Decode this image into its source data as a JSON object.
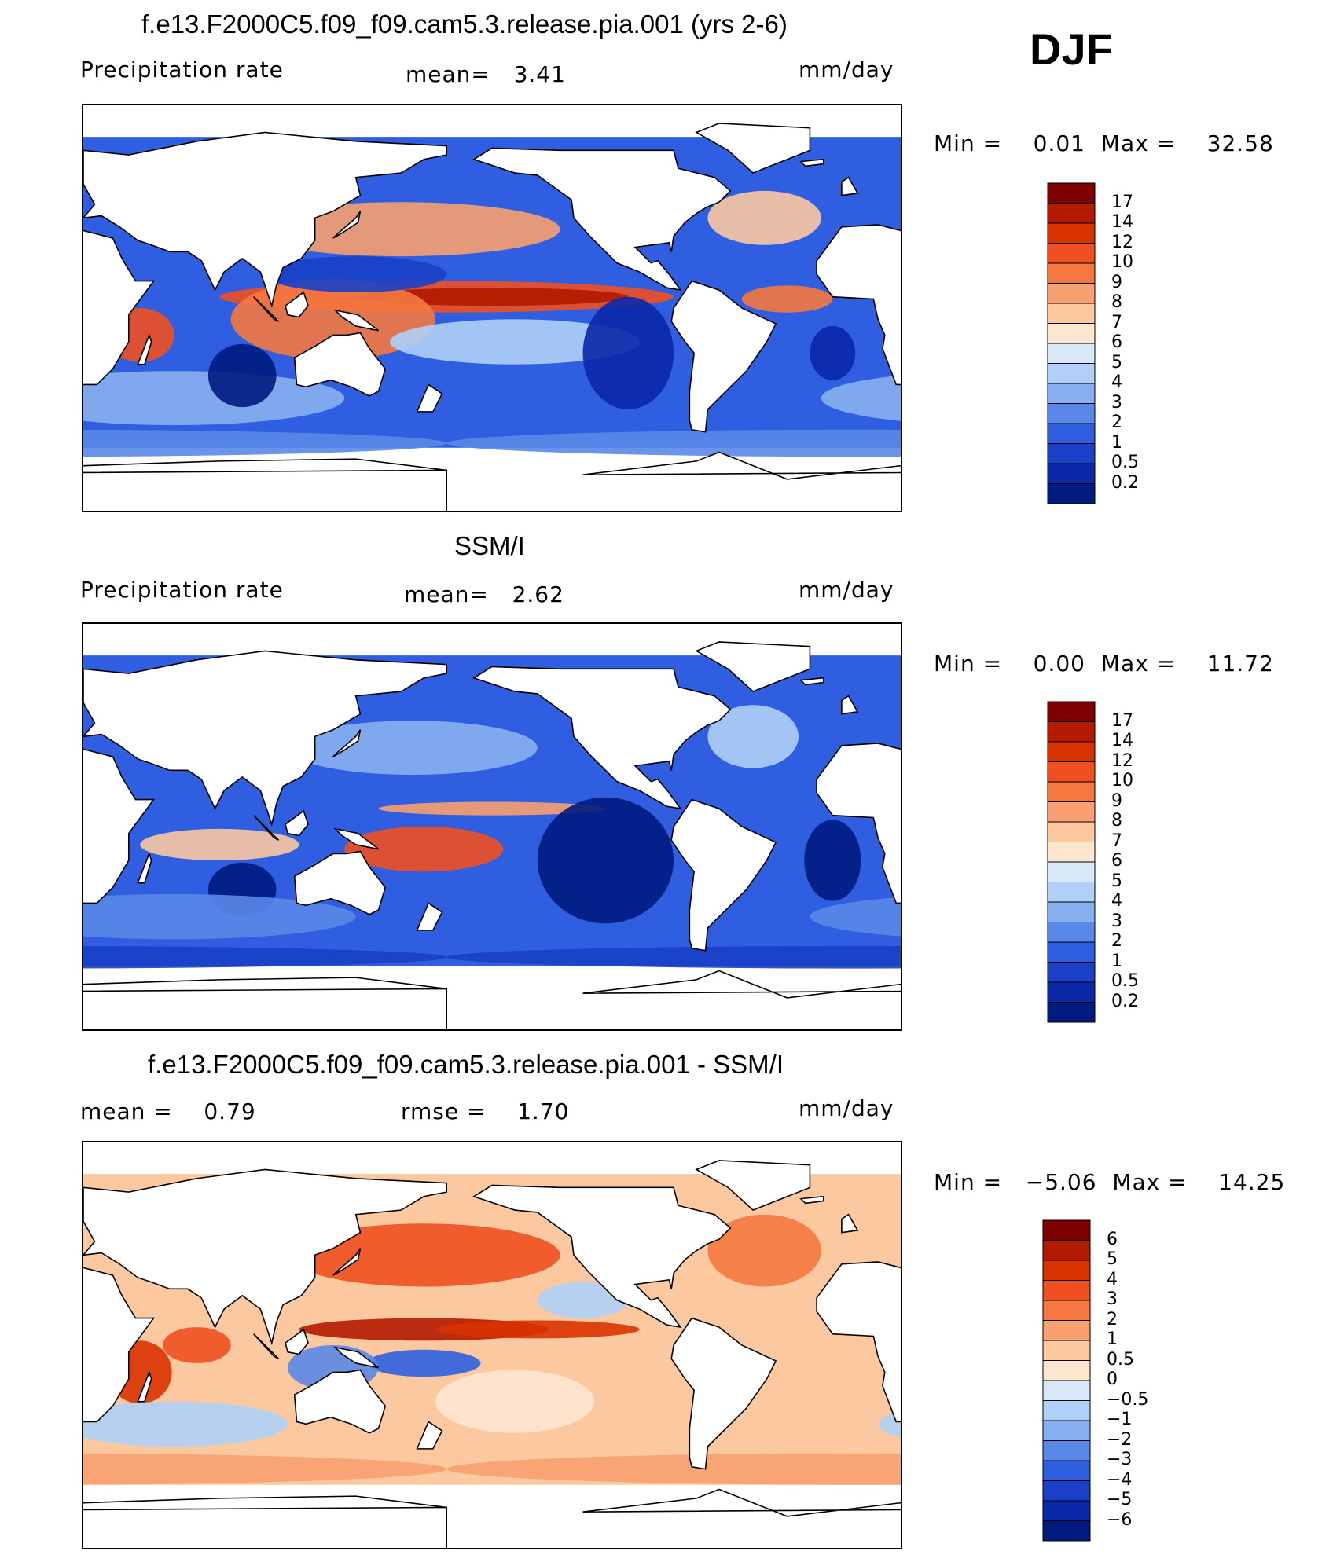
{
  "season": "DJF",
  "panels": [
    {
      "title": "f.e13.F2000C5.f09_f09.cam5.3.release.pia.001 (yrs 2-6)",
      "left_label": "Precipitation rate",
      "center_label": "mean=   3.41",
      "units": "mm/day",
      "minmax": "Min =    0.01  Max =    32.58",
      "colorbar": "precip"
    },
    {
      "title": "SSM/I",
      "left_label": "Precipitation rate",
      "center_label": "mean=   2.62",
      "units": "mm/day",
      "minmax": "Min =    0.00  Max =    11.72",
      "colorbar": "precip"
    },
    {
      "title": "f.e13.F2000C5.f09_f09.cam5.3.release.pia.001 - SSM/I",
      "left_label": "mean =    0.79",
      "center_label": "rmse =    1.70",
      "units": "mm/day",
      "minmax": "Min =   −5.06  Max =    14.25",
      "colorbar": "diff"
    }
  ],
  "colorbars": {
    "precip": {
      "ticks": [
        "17",
        "14",
        "12",
        "10",
        "9",
        "8",
        "7",
        "6",
        "5",
        "4",
        "3",
        "2",
        "1",
        "0.5",
        "0.2"
      ],
      "colors": [
        "#7f0000",
        "#b31a00",
        "#d93300",
        "#f05020",
        "#f57840",
        "#f8a070",
        "#fbc8a0",
        "#fde6d0",
        "#d8e8f8",
        "#b0d0f8",
        "#88b0f0",
        "#5a88e8",
        "#2f5fe0",
        "#1a40c8",
        "#0a28a8",
        "#001a80"
      ]
    },
    "diff": {
      "ticks": [
        "6",
        "5",
        "4",
        "3",
        "2",
        "1",
        "0.5",
        "0",
        "−0.5",
        "−1",
        "−2",
        "−3",
        "−4",
        "−5",
        "−6"
      ],
      "colors": [
        "#7f0000",
        "#b31a00",
        "#d93300",
        "#f05020",
        "#f57840",
        "#f8a070",
        "#fbc8a0",
        "#fde6d0",
        "#d8e8f8",
        "#b0d0f8",
        "#88b0f0",
        "#5a88e8",
        "#2f5fe0",
        "#1a40c8",
        "#0a28a8",
        "#001a80"
      ]
    }
  },
  "chart_data": [
    {
      "type": "heatmap",
      "title": "f.e13.F2000C5.f09_f09.cam5.3.release.pia.001 (yrs 2-6)",
      "variable": "Precipitation rate",
      "units": "mm/day",
      "mean": 3.41,
      "min": 0.01,
      "max": 32.58,
      "contour_levels": [
        0.2,
        0.5,
        1,
        2,
        3,
        4,
        5,
        6,
        7,
        8,
        9,
        10,
        12,
        14,
        17
      ]
    },
    {
      "type": "heatmap",
      "title": "SSM/I",
      "variable": "Precipitation rate",
      "units": "mm/day",
      "mean": 2.62,
      "min": 0.0,
      "max": 11.72,
      "contour_levels": [
        0.2,
        0.5,
        1,
        2,
        3,
        4,
        5,
        6,
        7,
        8,
        9,
        10,
        12,
        14,
        17
      ]
    },
    {
      "type": "heatmap",
      "title": "f.e13.F2000C5.f09_f09.cam5.3.release.pia.001 - SSM/I",
      "units": "mm/day",
      "mean": 0.79,
      "rmse": 1.7,
      "min": -5.06,
      "max": 14.25,
      "contour_levels": [
        -6,
        -5,
        -4,
        -3,
        -2,
        -1,
        -0.5,
        0,
        0.5,
        1,
        2,
        3,
        4,
        5,
        6
      ]
    }
  ]
}
